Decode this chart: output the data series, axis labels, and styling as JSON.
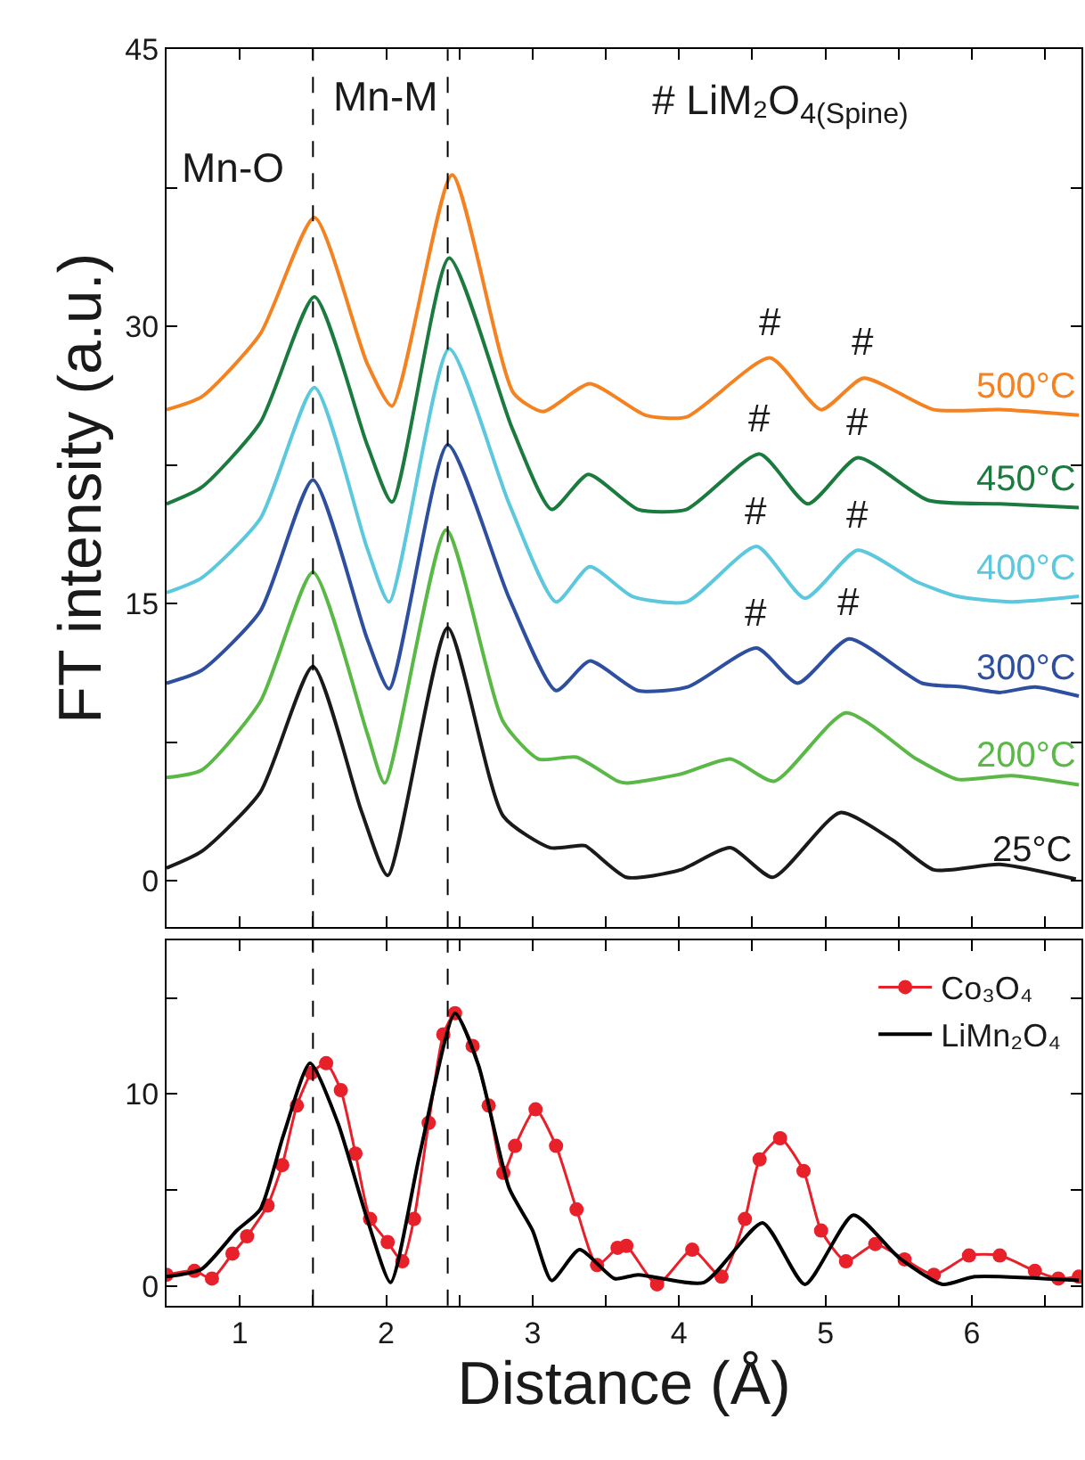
{
  "chart_data": [
    {
      "type": "line",
      "ylabel": "FT intensity (a.u.)",
      "xlim": [
        0.5,
        6.75
      ],
      "ylim": [
        -2.5,
        45
      ],
      "xticks": [
        {
          "value": 0.5,
          "label": null
        },
        1,
        {
          "value": 1.5,
          "label": null
        },
        2,
        {
          "value": 2.5,
          "label": null
        },
        3,
        {
          "value": 3.5,
          "label": null
        },
        4,
        {
          "value": 4.5,
          "label": null
        },
        5,
        {
          "value": 5.5,
          "label": null
        },
        6,
        {
          "value": 6.5,
          "label": null
        }
      ],
      "yticks": [
        0,
        {
          "value": 7.5,
          "label": null
        },
        15,
        {
          "value": 22.5,
          "label": null
        },
        30,
        {
          "value": 37.5,
          "label": null
        },
        45
      ],
      "tick_labels": "y",
      "grid": false,
      "legend": false,
      "line_style": "solid",
      "series": [
        {
          "name": "25°C",
          "color": "#1a1a1a",
          "x": [
            0.5,
            0.74,
            1.14,
            1.5,
            1.83,
            2.01,
            2.42,
            2.8,
            3.12,
            3.3,
            3.36,
            3.64,
            4.01,
            4.35,
            4.64,
            5.1,
            5.46,
            5.74,
            6.19,
            6.71
          ],
          "values": [
            0.7,
            1.6,
            4.8,
            11.6,
            3.8,
            0.3,
            13.7,
            3.5,
            1.8,
            1.9,
            1.9,
            0.2,
            0.6,
            1.8,
            0.2,
            3.7,
            2.2,
            0.6,
            0.9,
            0.1
          ]
        },
        {
          "name": "200°C",
          "color": "#5ab946",
          "x": [
            0.5,
            0.74,
            1.14,
            1.5,
            1.87,
            1.99,
            2.41,
            2.8,
            3.04,
            3.3,
            3.58,
            3.64,
            4.02,
            4.35,
            4.65,
            5.14,
            5.62,
            5.9,
            6.27,
            6.73
          ],
          "values": [
            5.6,
            6.0,
            9.7,
            16.7,
            8.0,
            5.3,
            19.0,
            8.6,
            6.6,
            6.7,
            5.4,
            5.3,
            5.8,
            6.6,
            5.4,
            9.1,
            6.6,
            5.5,
            5.7,
            5.2
          ]
        },
        {
          "name": "300°C",
          "color": "#2e4fa0",
          "x": [
            0.5,
            0.74,
            1.14,
            1.5,
            1.87,
            2.02,
            2.42,
            2.84,
            3.16,
            3.39,
            3.72,
            4.06,
            4.53,
            4.81,
            5.16,
            5.66,
            5.94,
            6.19,
            6.43,
            6.73
          ],
          "values": [
            10.7,
            11.4,
            14.6,
            21.7,
            13.1,
            10.4,
            23.6,
            15.3,
            10.3,
            11.9,
            10.3,
            10.5,
            12.6,
            10.7,
            13.1,
            10.7,
            10.5,
            10.2,
            10.5,
            10.0
          ]
        },
        {
          "name": "400°C",
          "color": "#5bc8de",
          "x": [
            0.5,
            0.74,
            1.14,
            1.51,
            1.87,
            2.02,
            2.43,
            2.84,
            3.16,
            3.39,
            3.68,
            4.05,
            4.53,
            4.86,
            5.22,
            5.62,
            5.9,
            6.27,
            6.73
          ],
          "values": [
            15.6,
            16.4,
            19.6,
            26.7,
            18.0,
            15.1,
            28.8,
            20.4,
            15.1,
            17.0,
            15.4,
            15.1,
            18.1,
            15.3,
            17.9,
            16.2,
            15.4,
            15.1,
            15.4
          ]
        },
        {
          "name": "450°C",
          "color": "#1b7a3e",
          "x": [
            0.5,
            0.74,
            1.14,
            1.51,
            1.87,
            2.04,
            2.43,
            2.86,
            3.13,
            3.38,
            3.72,
            4.05,
            4.55,
            4.88,
            5.22,
            5.7,
            6.19,
            6.73
          ],
          "values": [
            20.4,
            21.3,
            24.8,
            31.6,
            23.6,
            20.5,
            33.7,
            24.5,
            20.1,
            22.0,
            20.1,
            20.1,
            23.1,
            20.4,
            22.9,
            20.6,
            20.4,
            20.2
          ]
        },
        {
          "name": "500°C",
          "color": "#f58220",
          "x": [
            0.5,
            0.74,
            1.14,
            1.51,
            1.87,
            2.04,
            2.45,
            2.87,
            3.07,
            3.39,
            3.77,
            4.05,
            4.62,
            4.97,
            5.26,
            5.74,
            6.19,
            6.73
          ],
          "values": [
            25.5,
            26.2,
            29.6,
            35.9,
            28.0,
            25.7,
            38.2,
            26.4,
            25.4,
            26.9,
            25.2,
            25.1,
            28.3,
            25.5,
            27.2,
            25.5,
            25.5,
            25.2
          ]
        }
      ],
      "ref_lines": [
        {
          "axis": "x",
          "value": 1.5,
          "color": "#000000",
          "line_style": "dashed"
        },
        {
          "axis": "x",
          "value": 2.42,
          "color": "#000000",
          "line_style": "dashed"
        }
      ],
      "annotations": [
        "Mn-O",
        "Mn-M",
        "# LiM₂O$_{4(Spine)}$",
        {
          "text": "#",
          "x": 4.62,
          "y": 28.3
        },
        {
          "text": "#",
          "x": 5.26,
          "y": 27.2
        },
        {
          "text": "#",
          "x": 4.55,
          "y": 23.1
        },
        {
          "text": "#",
          "x": 5.22,
          "y": 22.9
        },
        {
          "text": "#",
          "x": 4.53,
          "y": 18.1
        },
        {
          "text": "#",
          "x": 5.22,
          "y": 17.9
        },
        {
          "text": "#",
          "x": 4.53,
          "y": 12.6
        },
        {
          "text": "#",
          "x": 5.16,
          "y": 13.1
        }
      ]
    },
    {
      "type": "line",
      "xlabel": "Distance (Å)",
      "xlim": [
        0.5,
        6.75
      ],
      "ylim": [
        -1,
        18
      ],
      "xticks": [
        {
          "value": 0.5,
          "label": null
        },
        1,
        {
          "value": 1.5,
          "label": null
        },
        2,
        {
          "value": 2.5,
          "label": null
        },
        3,
        {
          "value": 3.5,
          "label": null
        },
        4,
        {
          "value": 4.5,
          "label": null
        },
        5,
        {
          "value": 5.5,
          "label": null
        },
        6,
        {
          "value": 6.5,
          "label": null
        }
      ],
      "yticks": [
        0,
        {
          "value": 5,
          "label": null
        },
        10,
        {
          "value": 15,
          "label": null
        }
      ],
      "grid": false,
      "legend": "top right",
      "line_style": "solid",
      "series": [
        {
          "name": "Co₃O₄",
          "color": "#e8202a",
          "marker": "circle",
          "x": [
            0.5,
            0.69,
            0.81,
            0.95,
            1.05,
            1.19,
            1.29,
            1.39,
            1.49,
            1.59,
            1.69,
            1.79,
            1.89,
            2.01,
            2.11,
            2.19,
            2.29,
            2.39,
            2.47,
            2.59,
            2.7,
            2.8,
            2.88,
            3.02,
            3.16,
            3.3,
            3.44,
            3.58,
            3.64,
            3.85,
            4.09,
            4.29,
            4.45,
            4.55,
            4.69,
            4.85,
            4.97,
            5.14,
            5.34,
            5.54,
            5.74,
            5.98,
            6.19,
            6.43,
            6.59,
            6.73
          ],
          "values": [
            0.6,
            0.8,
            0.4,
            1.7,
            2.6,
            4.2,
            6.3,
            9.4,
            11.1,
            11.6,
            10.2,
            6.9,
            3.5,
            2.3,
            1.3,
            3.5,
            8.5,
            13.1,
            14.2,
            12.5,
            9.4,
            5.9,
            7.3,
            9.2,
            7.3,
            4.0,
            1.1,
            2.0,
            2.1,
            0.1,
            1.9,
            0.5,
            3.5,
            6.6,
            7.7,
            6.0,
            2.9,
            1.3,
            2.2,
            1.4,
            0.6,
            1.6,
            1.6,
            0.8,
            0.4,
            0.5
          ]
        },
        {
          "name": "LiMn₂O₄",
          "color": "#000000",
          "marker": "none",
          "x": [
            0.5,
            0.74,
            0.98,
            1.14,
            1.3,
            1.48,
            1.67,
            1.87,
            2.03,
            2.23,
            2.47,
            2.63,
            2.84,
            3.0,
            3.13,
            3.32,
            3.56,
            3.72,
            4.17,
            4.57,
            4.86,
            5.19,
            5.5,
            5.8,
            6.02,
            6.73
          ],
          "values": [
            0.5,
            0.9,
            2.9,
            4.0,
            7.9,
            11.6,
            8.5,
            3.5,
            0.2,
            6.9,
            14.2,
            11.5,
            5.1,
            2.9,
            0.3,
            1.9,
            0.4,
            0.6,
            0.2,
            3.3,
            0.1,
            3.7,
            1.5,
            0.1,
            0.5,
            0.3
          ]
        }
      ],
      "ref_lines": [
        {
          "axis": "x",
          "value": 1.5,
          "color": "#000000",
          "line_style": "dashed"
        },
        {
          "axis": "x",
          "value": 2.42,
          "color": "#000000",
          "line_style": "dashed"
        }
      ]
    }
  ]
}
